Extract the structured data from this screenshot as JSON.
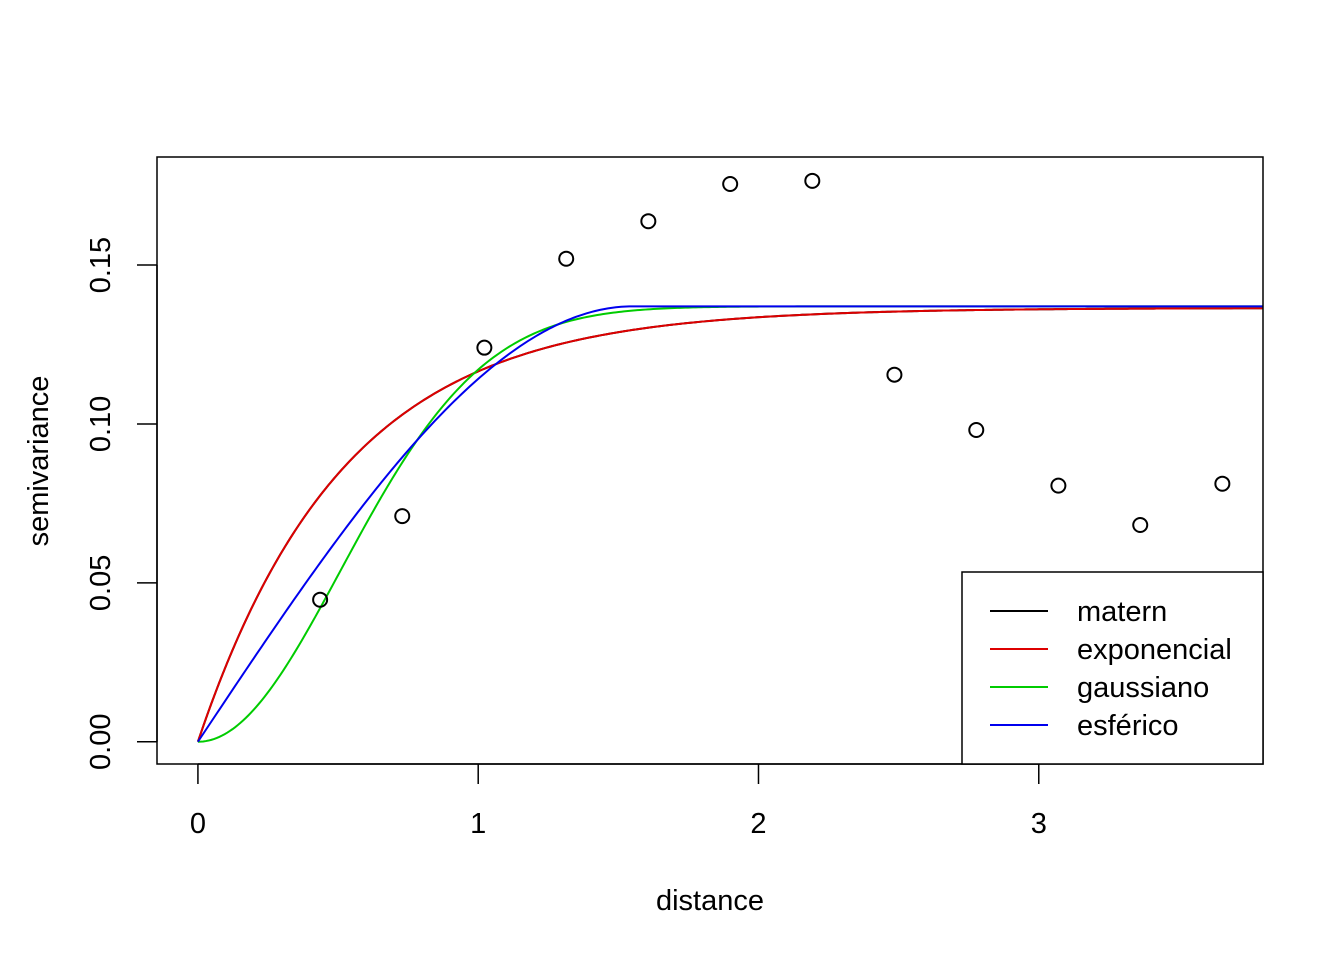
{
  "chart_data": {
    "type": "line",
    "xlabel": "distance",
    "ylabel": "semivariance",
    "xlim": [
      -0.146,
      3.8
    ],
    "ylim": [
      -0.007,
      0.184
    ],
    "x_ticks": [
      {
        "value": 0,
        "label": "0"
      },
      {
        "value": 1,
        "label": "1"
      },
      {
        "value": 2,
        "label": "2"
      },
      {
        "value": 3,
        "label": "3"
      }
    ],
    "y_ticks": [
      {
        "value": 0.0,
        "label": "0.00"
      },
      {
        "value": 0.05,
        "label": "0.05"
      },
      {
        "value": 0.1,
        "label": "0.10"
      },
      {
        "value": 0.15,
        "label": "0.15"
      }
    ],
    "points": [
      {
        "x": 0.436,
        "y": 0.0447
      },
      {
        "x": 0.729,
        "y": 0.071
      },
      {
        "x": 1.022,
        "y": 0.124
      },
      {
        "x": 1.314,
        "y": 0.152
      },
      {
        "x": 1.607,
        "y": 0.1638
      },
      {
        "x": 1.899,
        "y": 0.1755
      },
      {
        "x": 2.192,
        "y": 0.1765
      },
      {
        "x": 2.485,
        "y": 0.1155
      },
      {
        "x": 2.777,
        "y": 0.0981
      },
      {
        "x": 3.07,
        "y": 0.0806
      },
      {
        "x": 3.362,
        "y": 0.0682
      },
      {
        "x": 3.655,
        "y": 0.0812
      }
    ],
    "series": [
      {
        "name": "matern",
        "color": "#000000",
        "model": "exponential",
        "sill": 0.1365,
        "range": 0.52
      },
      {
        "name": "exponencial",
        "color": "#dd0000",
        "model": "exponential",
        "sill": 0.1365,
        "range": 0.52
      },
      {
        "name": "gaussiano",
        "color": "#00cc00",
        "model": "gaussian",
        "sill": 0.137,
        "range": 0.72
      },
      {
        "name": "esférico",
        "color": "#0000ee",
        "model": "spherical",
        "sill": 0.137,
        "range": 1.55
      }
    ],
    "legend": {
      "placement": "bottom-right",
      "entries": [
        "matern",
        "exponencial",
        "gaussiano",
        "esférico"
      ]
    }
  }
}
